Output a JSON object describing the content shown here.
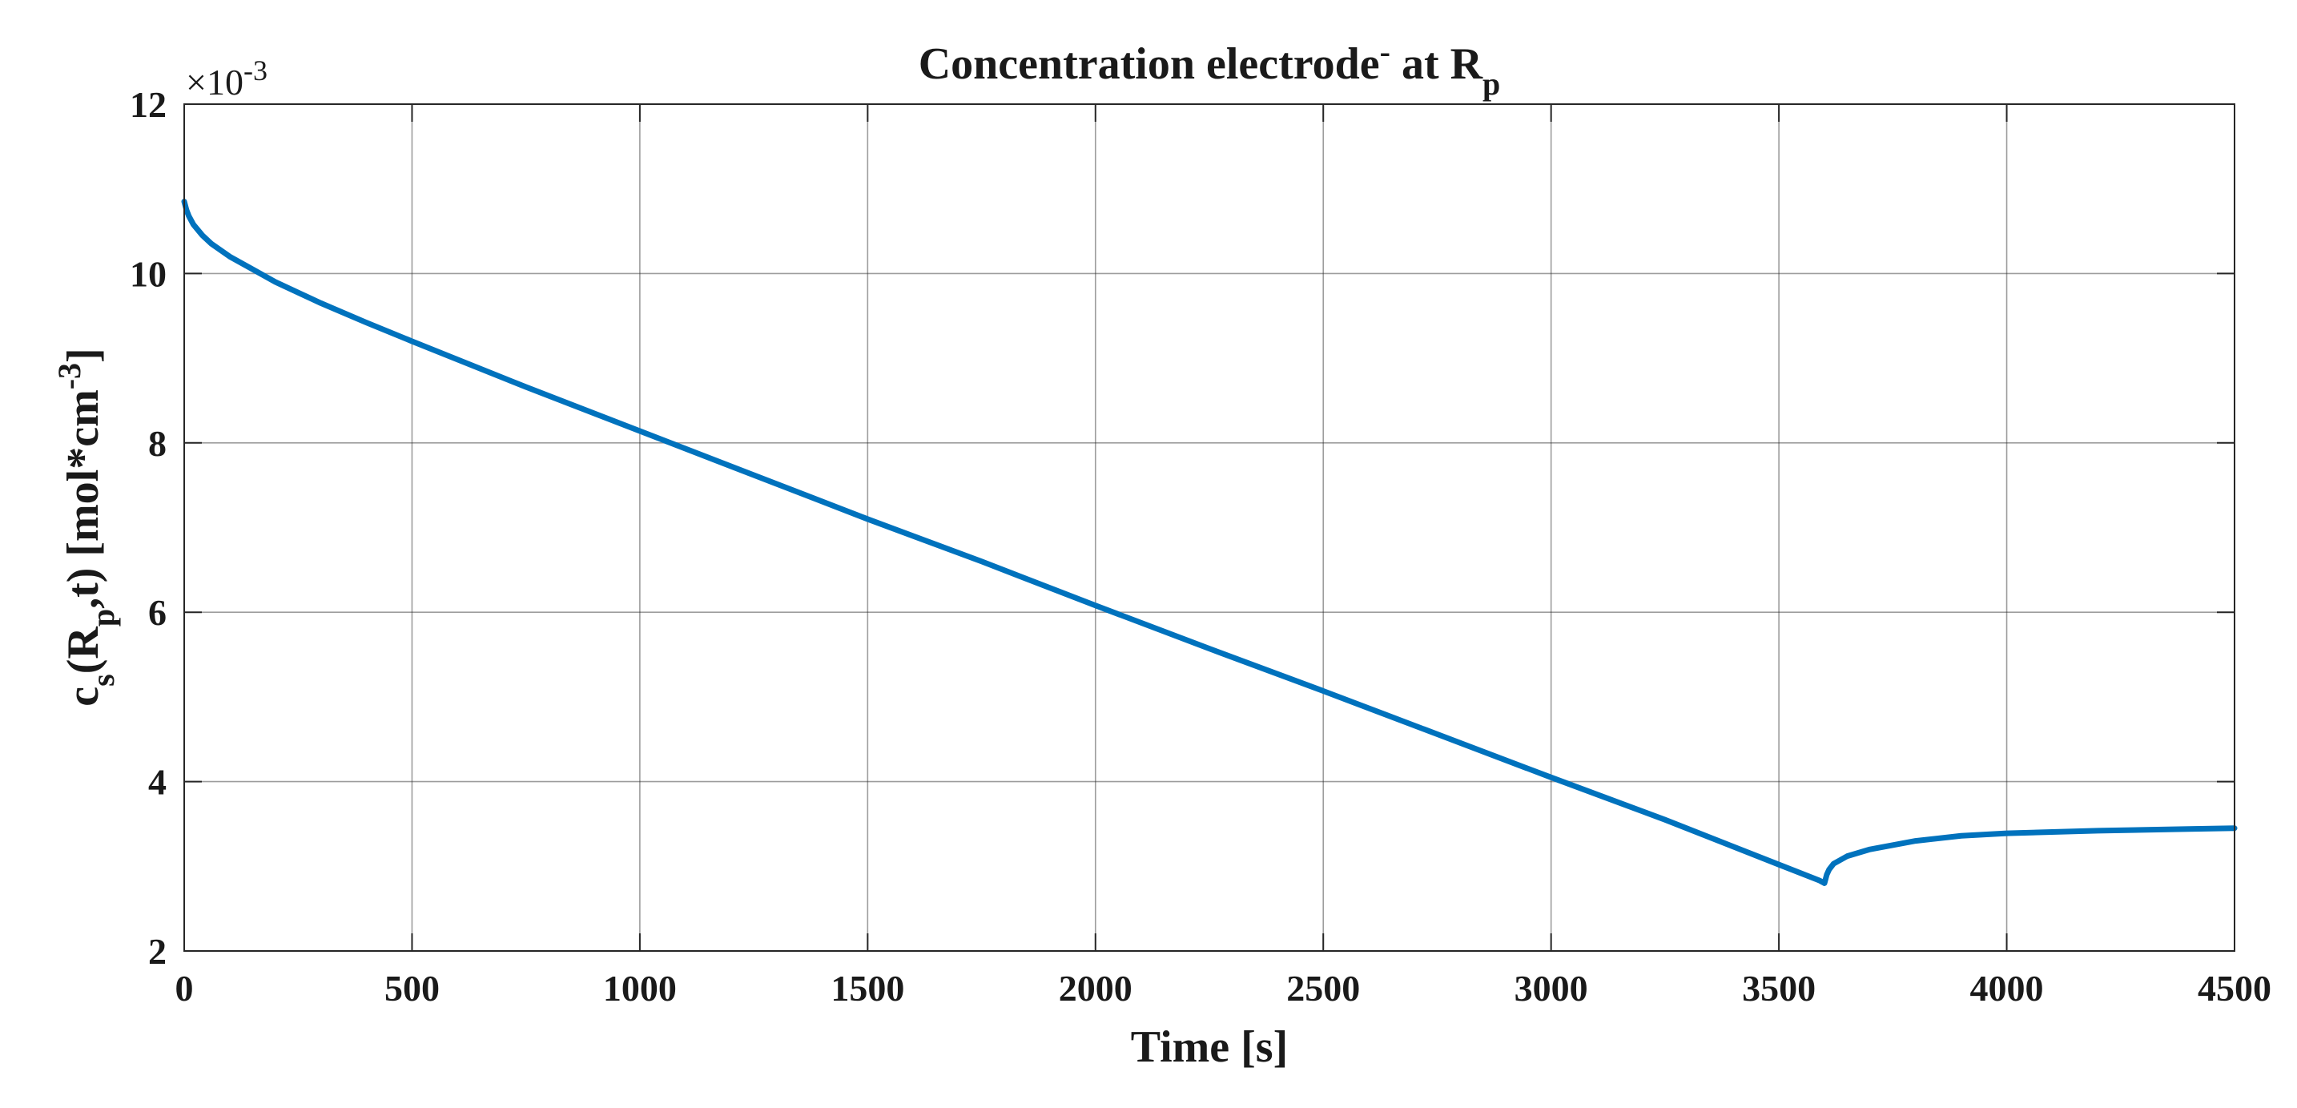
{
  "chart_data": {
    "type": "line",
    "title": {
      "main": "Concentration electrode",
      "superscript": "-",
      "mid": " at R",
      "subscript": "p"
    },
    "xlabel": "Time [s]",
    "ylabel": {
      "c": "c",
      "s_sub": "s",
      "open": "(R",
      "p_sub": "p",
      "rest": ",t) [mol*cm",
      "exp_sup": "-3",
      "close": "]"
    },
    "y_exponent": {
      "base": "×10",
      "power": "-3"
    },
    "xlim": [
      0,
      4500
    ],
    "ylim": [
      2,
      12
    ],
    "x_ticks": [
      0,
      500,
      1000,
      1500,
      2000,
      2500,
      3000,
      3500,
      4000,
      4500
    ],
    "x_tick_labels": [
      "0",
      "500",
      "1000",
      "1500",
      "2000",
      "2500",
      "3000",
      "3500",
      "4000",
      "4500"
    ],
    "y_ticks": [
      2,
      4,
      6,
      8,
      10,
      12
    ],
    "y_tick_labels": [
      "2",
      "4",
      "6",
      "8",
      "10",
      "12"
    ],
    "grid": true,
    "series": [
      {
        "name": "c_s(R_p,t)",
        "color": "#0072BD",
        "x": [
          0,
          5,
          10,
          20,
          40,
          60,
          100,
          150,
          200,
          300,
          400,
          500,
          750,
          1000,
          1250,
          1500,
          1750,
          2000,
          2250,
          2500,
          2750,
          3000,
          3250,
          3500,
          3590,
          3600,
          3605,
          3610,
          3620,
          3650,
          3700,
          3800,
          3900,
          4000,
          4200,
          4400,
          4500
        ],
        "values": [
          10.85,
          10.75,
          10.68,
          10.58,
          10.45,
          10.35,
          10.2,
          10.05,
          9.9,
          9.65,
          9.42,
          9.2,
          8.66,
          8.14,
          7.62,
          7.1,
          6.6,
          6.08,
          5.57,
          5.07,
          4.56,
          4.05,
          3.55,
          3.02,
          2.83,
          2.8,
          2.9,
          2.96,
          3.03,
          3.12,
          3.2,
          3.3,
          3.36,
          3.39,
          3.42,
          3.44,
          3.45
        ]
      }
    ]
  }
}
